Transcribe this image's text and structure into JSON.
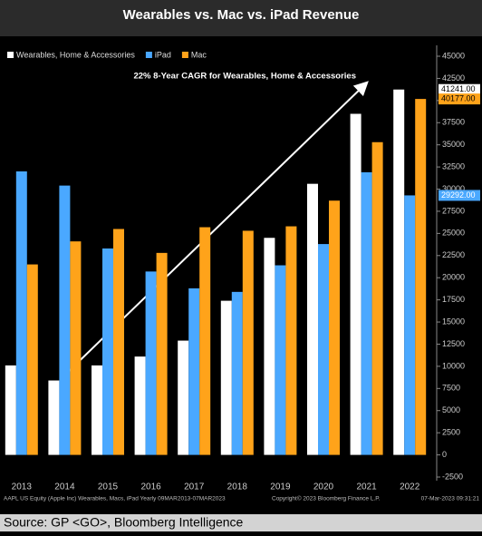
{
  "chart_data": {
    "type": "bar",
    "title": "Wearables vs. Mac vs. iPad Revenue",
    "annotation": "22% 8-Year CAGR for Wearables, Home & Accessories",
    "categories": [
      "2013",
      "2014",
      "2015",
      "2016",
      "2017",
      "2018",
      "2019",
      "2020",
      "2021",
      "2022"
    ],
    "series": [
      {
        "name": "Wearables, Home & Accessories",
        "color": "#ffffff",
        "values": [
          10100,
          8400,
          10100,
          11100,
          12900,
          17400,
          24500,
          30600,
          38500,
          41241
        ],
        "value_labels": [
          null,
          null,
          null,
          null,
          null,
          null,
          null,
          null,
          null,
          "41241.00"
        ]
      },
      {
        "name": "iPad",
        "color": "#4aa8ff",
        "values": [
          32000,
          30400,
          23300,
          20700,
          18800,
          18400,
          21400,
          23800,
          31900,
          29292
        ],
        "value_labels": [
          null,
          null,
          null,
          null,
          null,
          null,
          null,
          null,
          null,
          "29292.00"
        ]
      },
      {
        "name": "Mac",
        "color": "#ffa31a",
        "values": [
          21500,
          24100,
          25500,
          22800,
          25700,
          25300,
          25800,
          28700,
          35300,
          40177
        ],
        "value_labels": [
          null,
          null,
          null,
          null,
          null,
          null,
          null,
          null,
          null,
          "40177.00"
        ]
      }
    ],
    "ylim": [
      -2500,
      45000
    ],
    "yticks": [
      -2500,
      0,
      2500,
      5000,
      7500,
      10000,
      12500,
      15000,
      17500,
      20000,
      22500,
      25000,
      27500,
      30000,
      32500,
      35000,
      37500,
      40000,
      42500,
      45000
    ],
    "grid": false,
    "legend": "top-left",
    "footer_left": "AAPL US Equity (Apple Inc) Wearables, Macs, iPad  Yearly 09MAR2013-07MAR2023",
    "footer_copyright": "Copyright© 2023 Bloomberg Finance L.P.",
    "footer_date": "07-Mar-2023  09:31:21",
    "source": "Source: GP <GO>, Bloomberg Intelligence"
  }
}
